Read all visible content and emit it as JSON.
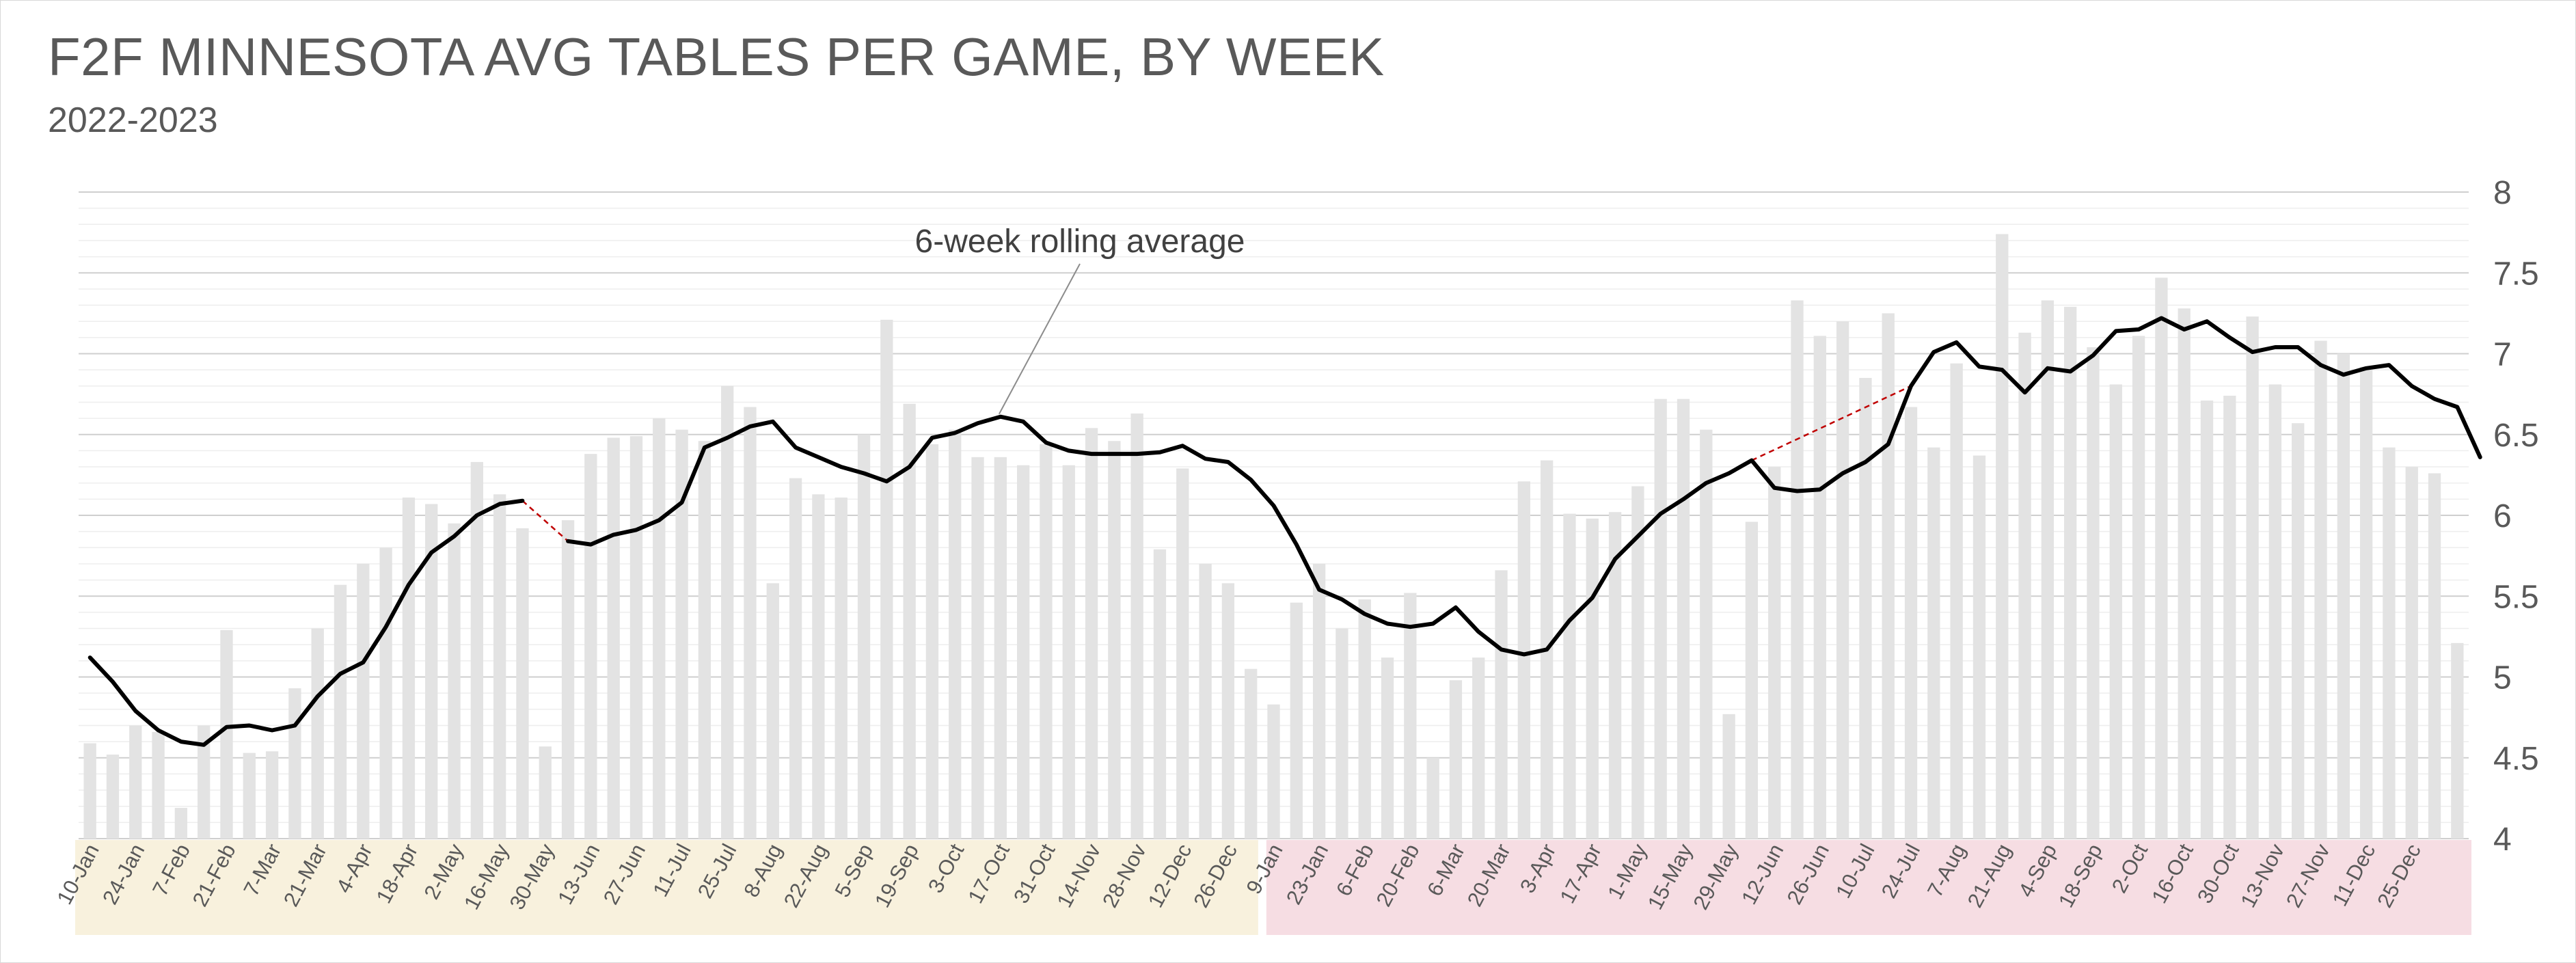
{
  "title": "F2F MINNESOTA AVG TABLES PER GAME, BY WEEK",
  "subtitle": "2022-2023",
  "colors": {
    "bar": "#e3e3e3",
    "line": "#000000",
    "gap_line": "#c00000",
    "band_2022": "#f8f1dd",
    "band_2023": "#f6dde3",
    "grid": "#d9d9d9",
    "text": "#595959"
  },
  "chart_data": {
    "type": "bar",
    "ylim": [
      4,
      8
    ],
    "yticks": [
      "4",
      "4.5",
      "5",
      "5.5",
      "6",
      "6.5",
      "7",
      "7.5",
      "8"
    ],
    "grid": true,
    "annotation": "6-week rolling average",
    "x_labels": [
      "10-Jan",
      "24-Jan",
      "7-Feb",
      "21-Feb",
      "7-Mar",
      "21-Mar",
      "4-Apr",
      "18-Apr",
      "2-May",
      "16-May",
      "30-May",
      "13-Jun",
      "27-Jun",
      "11-Jul",
      "25-Jul",
      "8-Aug",
      "22-Aug",
      "5-Sep",
      "19-Sep",
      "3-Oct",
      "17-Oct",
      "31-Oct",
      "14-Nov",
      "28-Nov",
      "12-Dec",
      "26-Dec",
      "9-Jan",
      "23-Jan",
      "6-Feb",
      "20-Feb",
      "6-Mar",
      "20-Mar",
      "3-Apr",
      "17-Apr",
      "1-May",
      "15-May",
      "29-May",
      "12-Jun",
      "26-Jun",
      "10-Jul",
      "24-Jul",
      "7-Aug",
      "21-Aug",
      "4-Sep",
      "18-Sep",
      "2-Oct",
      "16-Oct",
      "30-Oct",
      "13-Nov",
      "27-Nov",
      "11-Dec",
      "25-Dec"
    ],
    "year_split_index": 52,
    "series": [
      {
        "type": "bar",
        "values": [
          4.59,
          4.52,
          4.7,
          4.66,
          4.19,
          4.7,
          5.29,
          4.53,
          4.54,
          4.93,
          5.3,
          5.57,
          5.7,
          5.8,
          6.11,
          6.07,
          5.95,
          6.33,
          6.13,
          5.92,
          4.57,
          5.97,
          6.38,
          6.48,
          6.49,
          6.6,
          6.53,
          6.46,
          6.8,
          6.67,
          5.58,
          6.23,
          6.13,
          6.11,
          6.5,
          7.21,
          6.69,
          6.44,
          6.53,
          6.36,
          6.36,
          6.31,
          6.44,
          6.31,
          6.54,
          6.46,
          6.63,
          5.79,
          6.29,
          5.7,
          5.58,
          5.05,
          4.83,
          5.46,
          5.7,
          5.3,
          5.48,
          5.12,
          5.52,
          4.5,
          4.98,
          5.12,
          5.66,
          6.21,
          6.34,
          6.01,
          5.98,
          6.02,
          6.18,
          6.72,
          6.72,
          6.53,
          4.77,
          5.96,
          6.3,
          7.33,
          7.11,
          7.2,
          6.85,
          7.25,
          6.67,
          6.42,
          6.94,
          6.37,
          7.74,
          7.13,
          7.33,
          7.29,
          7.04,
          6.81,
          7.11,
          7.47,
          7.28,
          6.71,
          6.74,
          7.23,
          6.81,
          6.57,
          7.08,
          7.0,
          6.92,
          6.42,
          6.3,
          6.26,
          5.21
        ]
      },
      {
        "type": "line",
        "name": "6-week rolling average",
        "values": [
          5.12,
          4.97,
          4.79,
          4.67,
          4.6,
          4.58,
          4.69,
          4.7,
          4.67,
          4.7,
          4.88,
          5.02,
          5.09,
          5.31,
          5.57,
          5.77,
          5.87,
          6.0,
          6.07,
          6.09,
          null,
          5.84,
          5.82,
          5.88,
          5.91,
          5.97,
          6.08,
          6.42,
          6.48,
          6.55,
          6.58,
          6.42,
          6.36,
          6.3,
          6.26,
          6.21,
          6.3,
          6.48,
          6.51,
          6.57,
          6.61,
          6.58,
          6.45,
          6.4,
          6.38,
          6.38,
          6.38,
          6.39,
          6.43,
          6.35,
          6.33,
          6.22,
          6.06,
          5.82,
          5.54,
          5.48,
          5.39,
          5.33,
          5.31,
          5.33,
          5.43,
          5.28,
          5.17,
          5.14,
          5.17,
          5.35,
          5.49,
          5.73,
          5.87,
          6.01,
          6.1,
          6.2,
          6.26,
          6.34,
          6.17,
          6.15,
          6.16,
          6.26,
          6.33,
          6.44,
          6.8,
          7.01,
          7.07,
          6.92,
          6.9,
          6.76,
          6.91,
          6.89,
          6.99,
          7.14,
          7.15,
          7.22,
          7.15,
          7.2,
          7.1,
          7.01,
          7.04,
          7.04,
          6.93,
          6.87,
          6.91,
          6.93,
          6.8,
          6.72,
          6.67,
          6.36
        ]
      }
    ],
    "dashed_gaps": [
      [
        19,
        21
      ],
      [
        73,
        80
      ]
    ]
  }
}
